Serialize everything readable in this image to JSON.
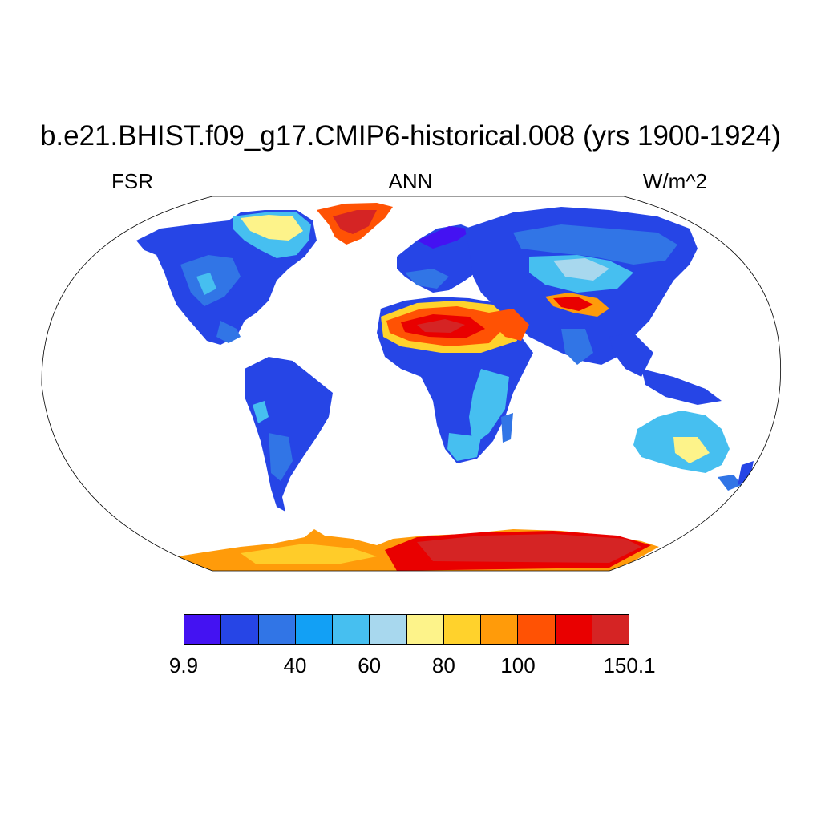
{
  "title": "b.e21.BHIST.f09_g17.CMIP6-historical.008 (yrs 1900-1924)",
  "left_label": "FSR",
  "center_label": "ANN",
  "right_label": "W/m^2",
  "colorbar": {
    "colors": [
      "#4412f2",
      "#2645e6",
      "#3175e6",
      "#12a0f5",
      "#46bff0",
      "#a8d8ee",
      "#fdf38a",
      "#ffd22c",
      "#ff9b0a",
      "#ff5204",
      "#e90000",
      "#d52424"
    ],
    "tick_labels": [
      "9.9",
      "40",
      "60",
      "80",
      "100",
      "150.1"
    ],
    "tick_boundaries": [
      0,
      3,
      5,
      7,
      9,
      12
    ]
  },
  "map": {
    "projection": "Robinson",
    "variable": "FSR",
    "period": "ANN"
  }
}
